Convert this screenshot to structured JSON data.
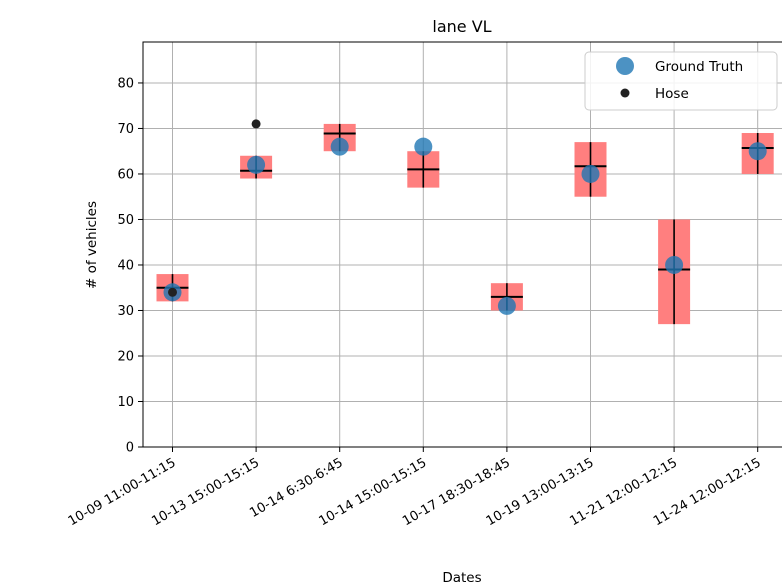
{
  "chart_data": {
    "type": "box-scatter",
    "title": "lane VL",
    "xlabel": "Dates",
    "ylabel": "# of vehicles",
    "ylim": [
      0,
      89
    ],
    "yticks": [
      0,
      10,
      20,
      30,
      40,
      50,
      60,
      70,
      80
    ],
    "grid": true,
    "legend_position": "top-right",
    "categories": [
      "10-09 11:00-11:15",
      "10-13 15:00-15:15",
      "10-14 6:30-6:45",
      "10-14 15:00-15:15",
      "10-17 18:30-18:45",
      "10-19 13:00-13:15",
      "11-21 12:00-12:15",
      "11-24 12:00-12:15"
    ],
    "boxes": [
      {
        "q1": 32,
        "q3": 38,
        "median": 35,
        "whisker_low": 32,
        "whisker_high": 38
      },
      {
        "q1": 59,
        "q3": 64,
        "median": 60.7,
        "whisker_low": 59,
        "whisker_high": 64
      },
      {
        "q1": 65,
        "q3": 71,
        "median": 68.9,
        "whisker_low": 65,
        "whisker_high": 71
      },
      {
        "q1": 57,
        "q3": 65,
        "median": 61,
        "whisker_low": 57,
        "whisker_high": 65
      },
      {
        "q1": 30,
        "q3": 36,
        "median": 33,
        "whisker_low": 30,
        "whisker_high": 36
      },
      {
        "q1": 55,
        "q3": 67,
        "median": 61.7,
        "whisker_low": 55,
        "whisker_high": 67
      },
      {
        "q1": 27,
        "q3": 50,
        "median": 39,
        "whisker_low": 27,
        "whisker_high": 50
      },
      {
        "q1": 60,
        "q3": 69,
        "median": 65.7,
        "whisker_low": 60,
        "whisker_high": 69
      }
    ],
    "series": [
      {
        "name": "Ground Truth",
        "values": [
          34,
          62,
          66,
          66,
          31,
          60,
          40,
          65
        ],
        "color": "#1f77b4"
      },
      {
        "name": "Hose",
        "values": [
          34,
          71,
          null,
          null,
          null,
          null,
          null,
          null
        ],
        "color": "#222222"
      }
    ],
    "colors": {
      "box_fill": "#ff7f7f",
      "box_line": "#000000",
      "grid": "#b0b0b0"
    }
  }
}
